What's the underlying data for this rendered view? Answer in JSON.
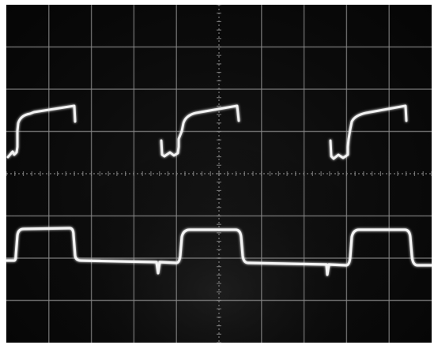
{
  "screen": {
    "background": "#050505",
    "grid_color": "#8a8a8a",
    "trace_color": "#f2f2f2",
    "glow_color": "#ffffff"
  },
  "graticule": {
    "major_divisions_x": 10,
    "major_divisions_y": 8,
    "minor_ticks_per_division": 5,
    "grid": "on",
    "center_axes": "dotted"
  },
  "traces": [
    {
      "id": "upper-trace",
      "shape": "sawtooth-with-step",
      "pulses": 3
    },
    {
      "id": "lower-trace",
      "shape": "rectangular-pulse-train",
      "pulses": 3
    }
  ]
}
